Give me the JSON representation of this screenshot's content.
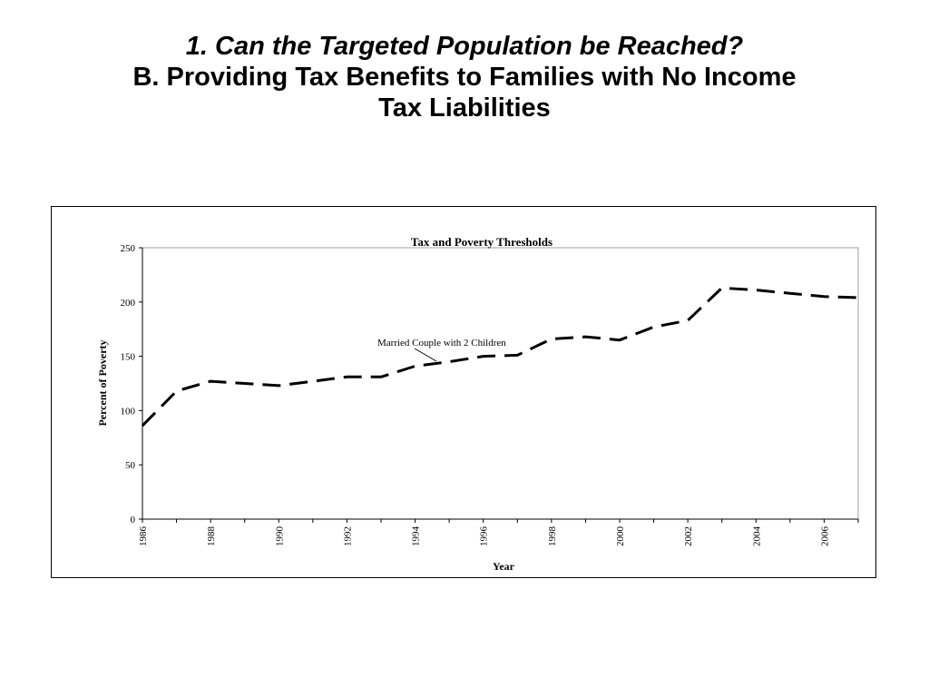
{
  "slide": {
    "title_line1": "1. Can the Targeted Population be Reached?",
    "title_line2": "B. Providing Tax Benefits to Families with No Income",
    "title_line3": "Tax Liabilities"
  },
  "chart_data": {
    "type": "line",
    "title": "Tax and Poverty Thresholds",
    "xlabel": "Year",
    "ylabel": "Percent of Poverty",
    "xlim": [
      1986,
      2007
    ],
    "ylim": [
      0,
      250
    ],
    "x_ticks": [
      "1986",
      "1988",
      "1990",
      "1992",
      "1994",
      "1996",
      "1998",
      "2000",
      "2002",
      "2004",
      "2006"
    ],
    "y_ticks": [
      "0",
      "50",
      "100",
      "150",
      "200",
      "250"
    ],
    "grid": false,
    "line_style": "dashed",
    "line_color": "#000000",
    "series": [
      {
        "name": "Married Couple with 2 Children",
        "x": [
          1986,
          1987,
          1988,
          1989,
          1990,
          1991,
          1992,
          1993,
          1994,
          1995,
          1996,
          1997,
          1998,
          1999,
          2000,
          2001,
          2002,
          2003,
          2004,
          2005,
          2006,
          2007
        ],
        "y": [
          86,
          118,
          127,
          125,
          123,
          127,
          131,
          131,
          141,
          145,
          150,
          151,
          166,
          168,
          165,
          177,
          183,
          213,
          211,
          208,
          205,
          204
        ]
      }
    ],
    "annotation": "Married Couple with 2 Children"
  }
}
